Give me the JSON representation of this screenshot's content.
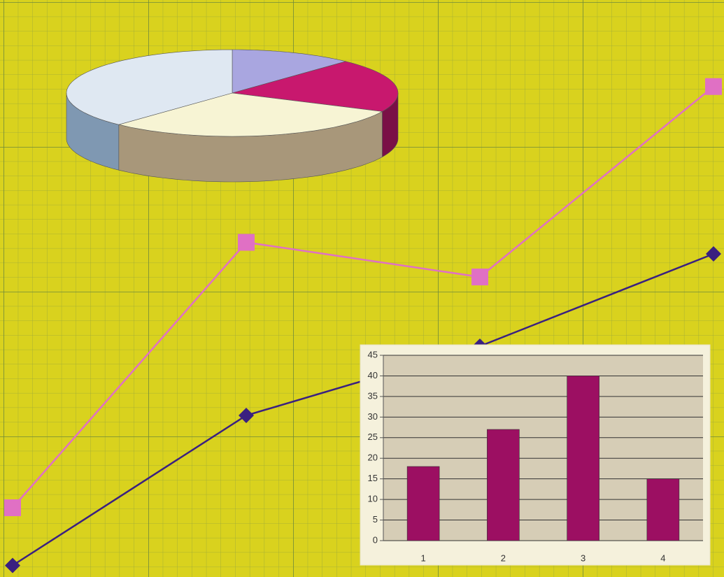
{
  "chart_data": [
    {
      "type": "pie",
      "values": [
        12,
        20,
        30,
        38
      ],
      "colors": [
        "#a9a6e0",
        "#c8186e",
        "#f7f4d4",
        "#dfe8f2"
      ],
      "side_colors": [
        "#7d7ab0",
        "#7a1046",
        "#a8977a",
        "#7f98b2"
      ]
    },
    {
      "type": "line",
      "categories": [
        null,
        null,
        null,
        null
      ],
      "ylim": [
        0,
        100
      ],
      "series": [
        {
          "color": "#e070c4",
          "values": [
            12,
            58,
            52,
            85
          ]
        },
        {
          "color": "#3a2080",
          "values": [
            2,
            28,
            40,
            56
          ]
        }
      ]
    },
    {
      "type": "bar",
      "categories": [
        "1",
        "2",
        "3",
        "4"
      ],
      "values": [
        18,
        27,
        40,
        15
      ],
      "color": "#9c0f62",
      "ylim": [
        0,
        45
      ],
      "yticks": [
        0,
        5,
        10,
        15,
        20,
        25,
        30,
        35,
        40,
        45
      ],
      "grid": true
    }
  ]
}
